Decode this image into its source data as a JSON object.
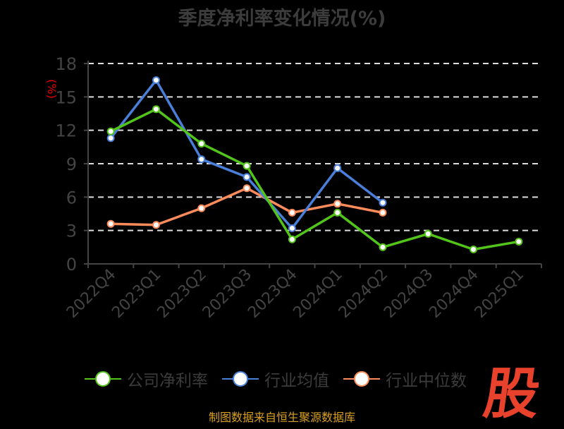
{
  "chart_data": {
    "type": "line",
    "title": "季度净利率变化情况(%)",
    "ylabel": "(%)",
    "xlabel": "",
    "ylim": [
      0,
      18
    ],
    "yticks": [
      0,
      3,
      6,
      9,
      12,
      15,
      18
    ],
    "grid": true,
    "legend_position": "bottom",
    "categories": [
      "2022Q4",
      "2023Q1",
      "2023Q2",
      "2023Q3",
      "2023Q4",
      "2024Q1",
      "2024Q2",
      "2024Q3",
      "2024Q4",
      "2025Q1"
    ],
    "series": [
      {
        "name": "公司净利率",
        "color": "#52c41a",
        "values": [
          11.9,
          13.9,
          10.8,
          8.8,
          2.2,
          4.6,
          1.5,
          2.7,
          1.3,
          2.0
        ]
      },
      {
        "name": "行业均值",
        "color": "#4a7fd9",
        "values": [
          11.3,
          16.5,
          9.4,
          7.8,
          3.2,
          8.6,
          5.5,
          null,
          null,
          null
        ]
      },
      {
        "name": "行业中位数",
        "color": "#ff8c5a",
        "values": [
          3.6,
          3.5,
          5.0,
          6.8,
          4.6,
          5.4,
          4.6,
          null,
          null,
          null
        ]
      }
    ]
  },
  "source": "制图数据来自恒生聚源数据库",
  "logo_text": "股"
}
